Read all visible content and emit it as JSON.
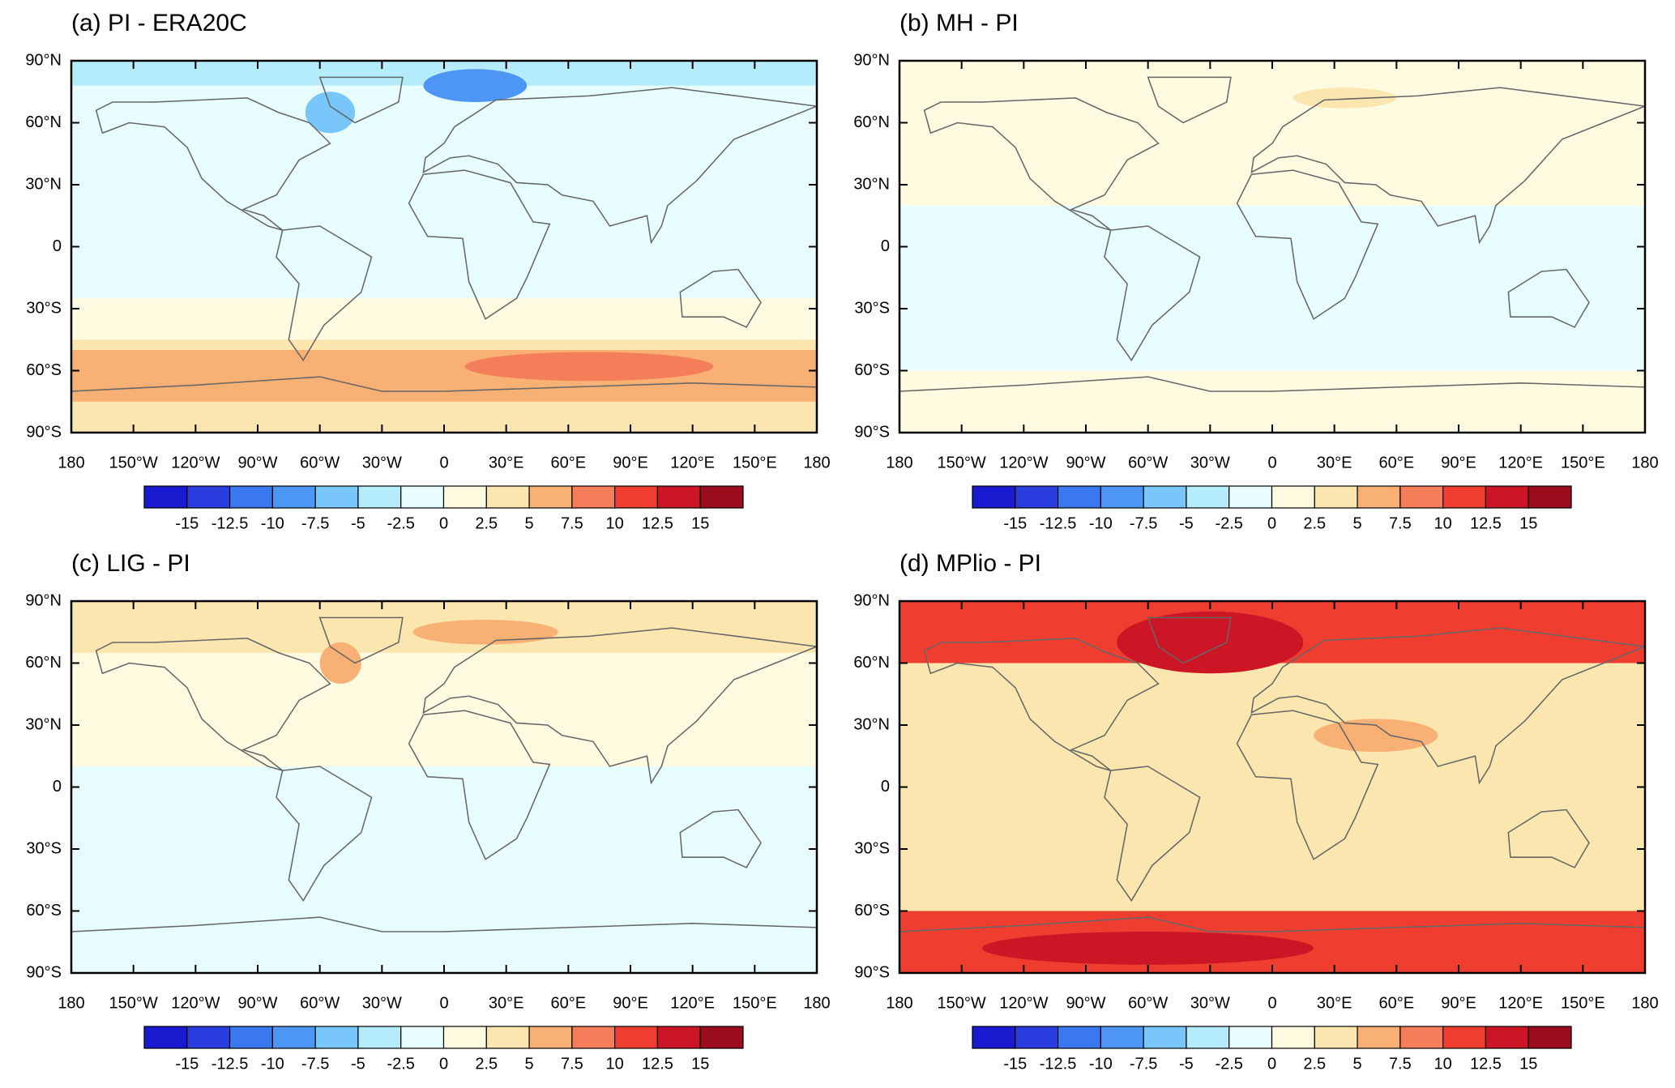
{
  "panels": [
    {
      "title": "(a) PI - ERA20C"
    },
    {
      "title": "(b) MH - PI"
    },
    {
      "title": "(c) LIG - PI"
    },
    {
      "title": "(d) MPlio - PI"
    }
  ],
  "lat_labels": [
    "90°N",
    "60°N",
    "30°N",
    "0",
    "30°S",
    "60°S",
    "90°S"
  ],
  "lon_labels": [
    "180",
    "150°W",
    "120°W",
    "90°W",
    "60°W",
    "30°W",
    "0",
    "30°E",
    "60°E",
    "90°E",
    "120°E",
    "150°E",
    "180"
  ],
  "colorbar": {
    "colors": [
      "#1a1ad0",
      "#2a3ee0",
      "#3a78f0",
      "#4e96f5",
      "#78c6fa",
      "#b4ecfc",
      "#e8fefe",
      "#fffbe0",
      "#fbe6b0",
      "#f8b074",
      "#f47e5a",
      "#ef3d30",
      "#cc1525",
      "#9a0c1e"
    ],
    "labels": [
      -15,
      -12.5,
      -10,
      -7.5,
      -5,
      -2.5,
      0,
      2.5,
      5,
      7.5,
      10,
      12.5,
      15
    ]
  }
}
